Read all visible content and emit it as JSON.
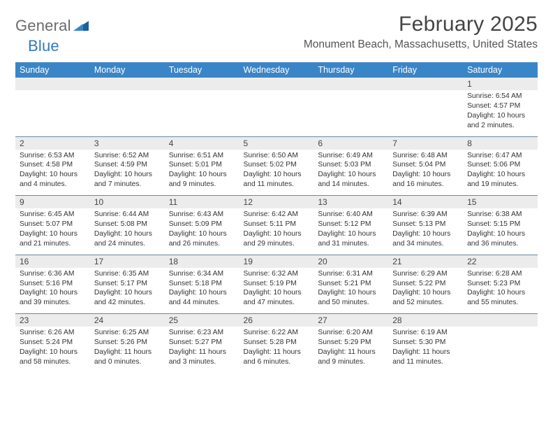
{
  "logo": {
    "textA": "General",
    "textB": "Blue"
  },
  "title": "February 2025",
  "location": "Monument Beach, Massachusetts, United States",
  "colors": {
    "headerBg": "#3a85c6",
    "headerFg": "#ffffff",
    "dayRowBg": "#ececec",
    "rowSep": "#6a88a6",
    "logoGray": "#6b6b6b",
    "logoBlue": "#2f7bbf"
  },
  "dayNames": [
    "Sunday",
    "Monday",
    "Tuesday",
    "Wednesday",
    "Thursday",
    "Friday",
    "Saturday"
  ],
  "weeks": [
    {
      "nums": [
        "",
        "",
        "",
        "",
        "",
        "",
        "1"
      ],
      "cells": [
        "",
        "",
        "",
        "",
        "",
        "",
        "Sunrise: 6:54 AM\nSunset: 4:57 PM\nDaylight: 10 hours and 2 minutes."
      ]
    },
    {
      "nums": [
        "2",
        "3",
        "4",
        "5",
        "6",
        "7",
        "8"
      ],
      "cells": [
        "Sunrise: 6:53 AM\nSunset: 4:58 PM\nDaylight: 10 hours and 4 minutes.",
        "Sunrise: 6:52 AM\nSunset: 4:59 PM\nDaylight: 10 hours and 7 minutes.",
        "Sunrise: 6:51 AM\nSunset: 5:01 PM\nDaylight: 10 hours and 9 minutes.",
        "Sunrise: 6:50 AM\nSunset: 5:02 PM\nDaylight: 10 hours and 11 minutes.",
        "Sunrise: 6:49 AM\nSunset: 5:03 PM\nDaylight: 10 hours and 14 minutes.",
        "Sunrise: 6:48 AM\nSunset: 5:04 PM\nDaylight: 10 hours and 16 minutes.",
        "Sunrise: 6:47 AM\nSunset: 5:06 PM\nDaylight: 10 hours and 19 minutes."
      ]
    },
    {
      "nums": [
        "9",
        "10",
        "11",
        "12",
        "13",
        "14",
        "15"
      ],
      "cells": [
        "Sunrise: 6:45 AM\nSunset: 5:07 PM\nDaylight: 10 hours and 21 minutes.",
        "Sunrise: 6:44 AM\nSunset: 5:08 PM\nDaylight: 10 hours and 24 minutes.",
        "Sunrise: 6:43 AM\nSunset: 5:09 PM\nDaylight: 10 hours and 26 minutes.",
        "Sunrise: 6:42 AM\nSunset: 5:11 PM\nDaylight: 10 hours and 29 minutes.",
        "Sunrise: 6:40 AM\nSunset: 5:12 PM\nDaylight: 10 hours and 31 minutes.",
        "Sunrise: 6:39 AM\nSunset: 5:13 PM\nDaylight: 10 hours and 34 minutes.",
        "Sunrise: 6:38 AM\nSunset: 5:15 PM\nDaylight: 10 hours and 36 minutes."
      ]
    },
    {
      "nums": [
        "16",
        "17",
        "18",
        "19",
        "20",
        "21",
        "22"
      ],
      "cells": [
        "Sunrise: 6:36 AM\nSunset: 5:16 PM\nDaylight: 10 hours and 39 minutes.",
        "Sunrise: 6:35 AM\nSunset: 5:17 PM\nDaylight: 10 hours and 42 minutes.",
        "Sunrise: 6:34 AM\nSunset: 5:18 PM\nDaylight: 10 hours and 44 minutes.",
        "Sunrise: 6:32 AM\nSunset: 5:19 PM\nDaylight: 10 hours and 47 minutes.",
        "Sunrise: 6:31 AM\nSunset: 5:21 PM\nDaylight: 10 hours and 50 minutes.",
        "Sunrise: 6:29 AM\nSunset: 5:22 PM\nDaylight: 10 hours and 52 minutes.",
        "Sunrise: 6:28 AM\nSunset: 5:23 PM\nDaylight: 10 hours and 55 minutes."
      ]
    },
    {
      "nums": [
        "23",
        "24",
        "25",
        "26",
        "27",
        "28",
        ""
      ],
      "cells": [
        "Sunrise: 6:26 AM\nSunset: 5:24 PM\nDaylight: 10 hours and 58 minutes.",
        "Sunrise: 6:25 AM\nSunset: 5:26 PM\nDaylight: 11 hours and 0 minutes.",
        "Sunrise: 6:23 AM\nSunset: 5:27 PM\nDaylight: 11 hours and 3 minutes.",
        "Sunrise: 6:22 AM\nSunset: 5:28 PM\nDaylight: 11 hours and 6 minutes.",
        "Sunrise: 6:20 AM\nSunset: 5:29 PM\nDaylight: 11 hours and 9 minutes.",
        "Sunrise: 6:19 AM\nSunset: 5:30 PM\nDaylight: 11 hours and 11 minutes.",
        ""
      ]
    }
  ]
}
